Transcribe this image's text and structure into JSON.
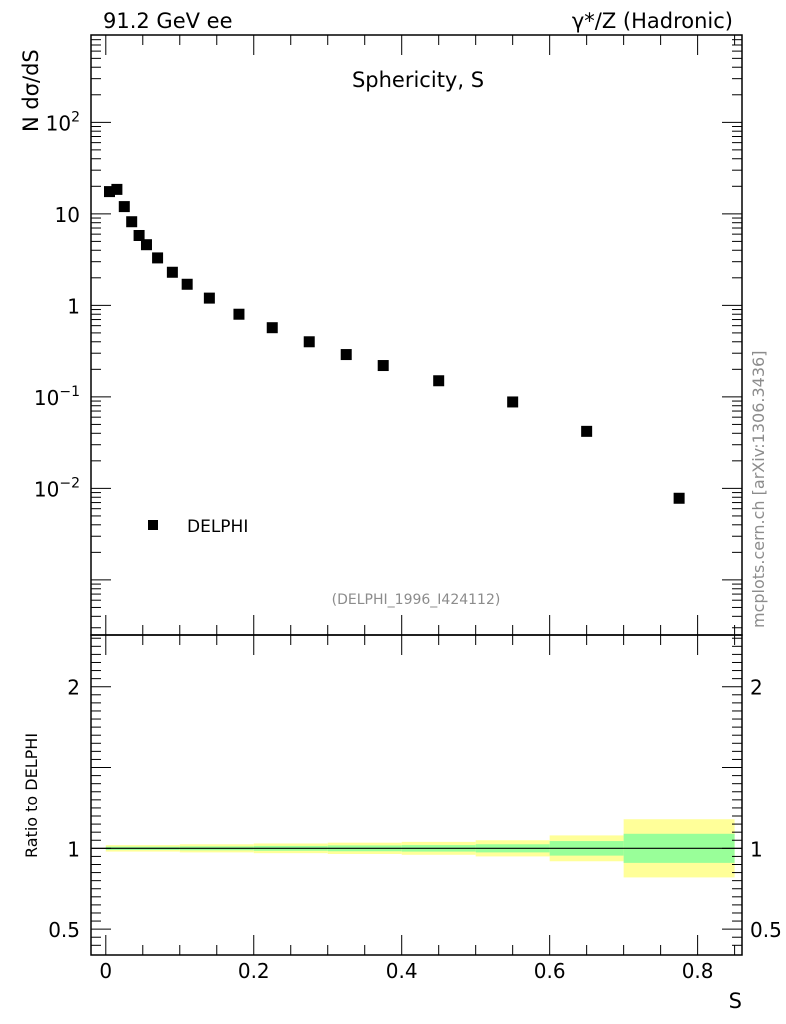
{
  "header": {
    "left": "91.2 GeV ee",
    "right": "γ*/Z (Hadronic)"
  },
  "watermark": "mcplots.cern.ch [arXiv:1306.3436]",
  "chart_data": [
    {
      "type": "scatter",
      "title": "Sphericity, S",
      "ylabel": "N  dσ/dS",
      "yscale": "log",
      "ylim": [
        0.00025,
        900
      ],
      "yticks": [
        {
          "value": 100,
          "label": "10",
          "sup": "2"
        },
        {
          "value": 10,
          "label": "10",
          "sup": ""
        },
        {
          "value": 1,
          "label": "1",
          "sup": ""
        },
        {
          "value": 0.1,
          "label": "10",
          "sup": "−1"
        },
        {
          "value": 0.01,
          "label": "10",
          "sup": "−2"
        }
      ],
      "legend": {
        "entry": "DELPHI",
        "position": "bottom-left"
      },
      "reference": "(DELPHI_1996_I424112)",
      "series": [
        {
          "name": "DELPHI",
          "x": [
            0.005,
            0.015,
            0.025,
            0.035,
            0.045,
            0.055,
            0.07,
            0.09,
            0.11,
            0.14,
            0.18,
            0.225,
            0.275,
            0.325,
            0.375,
            0.45,
            0.55,
            0.65,
            0.775
          ],
          "y": [
            17.5,
            18.5,
            12.0,
            8.2,
            5.8,
            4.6,
            3.3,
            2.3,
            1.7,
            1.2,
            0.8,
            0.57,
            0.4,
            0.29,
            0.22,
            0.15,
            0.088,
            0.042,
            0.0078
          ]
        }
      ]
    },
    {
      "type": "area",
      "ylabel": "Ratio to DELPHI",
      "xlabel": "S",
      "xlim": [
        -0.02,
        0.86
      ],
      "ylim": [
        0.34,
        2.32
      ],
      "xticks": [
        {
          "value": 0,
          "label": "0"
        },
        {
          "value": 0.2,
          "label": "0.2"
        },
        {
          "value": 0.4,
          "label": "0.4"
        },
        {
          "value": 0.6,
          "label": "0.6"
        },
        {
          "value": 0.8,
          "label": "0.8"
        }
      ],
      "yticks": [
        {
          "value": 2,
          "label": "2"
        },
        {
          "value": 1,
          "label": "1"
        },
        {
          "value": 0.5,
          "label": "0.5"
        }
      ],
      "bands": [
        {
          "x0": 0.0,
          "x1": 0.1,
          "y_lo": 0.98,
          "y_hi": 1.02,
          "stat_lo": 0.99,
          "stat_hi": 1.01
        },
        {
          "x0": 0.1,
          "x1": 0.2,
          "y_lo": 0.975,
          "y_hi": 1.025,
          "stat_lo": 0.988,
          "stat_hi": 1.012
        },
        {
          "x0": 0.2,
          "x1": 0.3,
          "y_lo": 0.97,
          "y_hi": 1.03,
          "stat_lo": 0.985,
          "stat_hi": 1.015
        },
        {
          "x0": 0.3,
          "x1": 0.4,
          "y_lo": 0.965,
          "y_hi": 1.035,
          "stat_lo": 0.982,
          "stat_hi": 1.018
        },
        {
          "x0": 0.4,
          "x1": 0.5,
          "y_lo": 0.96,
          "y_hi": 1.04,
          "stat_lo": 0.98,
          "stat_hi": 1.02
        },
        {
          "x0": 0.5,
          "x1": 0.6,
          "y_lo": 0.95,
          "y_hi": 1.05,
          "stat_lo": 0.975,
          "stat_hi": 1.025
        },
        {
          "x0": 0.6,
          "x1": 0.7,
          "y_lo": 0.92,
          "y_hi": 1.08,
          "stat_lo": 0.955,
          "stat_hi": 1.045
        },
        {
          "x0": 0.7,
          "x1": 0.85,
          "y_lo": 0.82,
          "y_hi": 1.18,
          "stat_lo": 0.91,
          "stat_hi": 1.09
        }
      ],
      "reference_line": 1
    }
  ]
}
